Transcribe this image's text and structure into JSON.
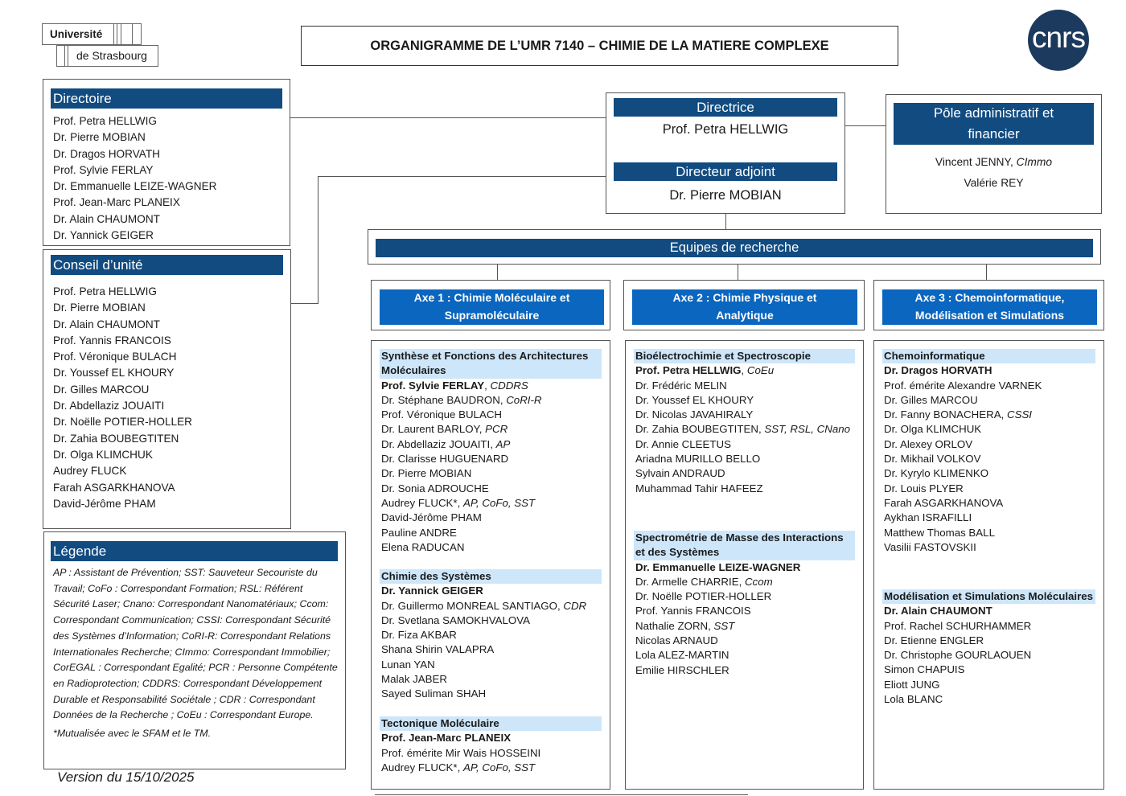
{
  "logo": {
    "line1": "Université",
    "line2": "de Strasbourg",
    "cnrs": "cnrs"
  },
  "title": "ORGANIGRAMME DE L’UMR 7140 – CHIMIE DE LA MATIERE COMPLEXE",
  "directoire": {
    "title": "Directoire",
    "members": [
      "Prof. Petra HELLWIG",
      "Dr. Pierre MOBIAN",
      "Dr. Dragos HORVATH",
      "Prof. Sylvie FERLAY",
      "Dr. Emmanuelle LEIZE-WAGNER",
      "Prof. Jean-Marc PLANEIX",
      "Dr. Alain CHAUMONT",
      "Dr. Yannick GEIGER"
    ]
  },
  "conseil": {
    "title": "Conseil d’unité",
    "members": [
      "Prof. Petra HELLWIG",
      "Dr. Pierre MOBIAN",
      "Dr. Alain CHAUMONT",
      "Prof. Yannis FRANCOIS",
      "Prof. Véronique BULACH",
      "Dr. Youssef EL KHOURY",
      "Dr. Gilles MARCOU",
      "Dr. Abdellaziz JOUAITI",
      "Dr. Noëlle POTIER-HOLLER",
      "Dr. Zahia BOUBEGTITEN",
      "Dr. Olga KLIMCHUK",
      "Audrey FLUCK",
      "Farah ASGARKHANOVA",
      "David-Jérôme PHAM"
    ]
  },
  "legende": {
    "title": "Légende",
    "text": "AP : Assistant de Prévention; SST: Sauveteur Secouriste du Travail; CoFo : Correspondant Formation; RSL: Référent Sécurité Laser; Cnano: Correspondant Nanomatériaux; Ccom: Correspondant Communication; CSSI: Correspondant Sécurité des Systèmes d’Information; CoRI-R: Correspondant Relations Internationales Recherche; CImmo: Correspondant Immobilier; CorEGAL : Correspondant Egalité; PCR : Personne Compétente en Radioprotection; CDDRS: Correspondant Développement Durable et Responsabilité Sociétale ; CDR : Correspondant Données de la Recherche ; CoEu : Correspondant Europe.",
    "note": "*Mutualisée avec le SFAM et le TM."
  },
  "version": "Version du 15/10/2025",
  "direction": {
    "directrice_title": "Directrice",
    "directrice": "Prof. Petra HELLWIG",
    "adjoint_title": "Directeur adjoint",
    "adjoint": "Dr. Pierre MOBIAN"
  },
  "pole": {
    "title": "Pôle administratif et financier",
    "members": [
      {
        "name": "Vincent JENNY, ",
        "role": "CImmo"
      },
      {
        "name": "Valérie REY",
        "role": ""
      }
    ]
  },
  "equipes_title": "Equipes de recherche",
  "axes": [
    {
      "title": "Axe 1 : Chimie Moléculaire et Supramoléculaire",
      "groups": [
        {
          "name": "Synthèse et Fonctions des Architectures Moléculaires",
          "members": [
            {
              "name": "Prof. Sylvie FERLAY",
              "role": "CDDRS",
              "bold": true
            },
            {
              "name": "Dr. Stéphane BAUDRON",
              "role": "CoRI-R"
            },
            {
              "name": "Prof. Véronique BULACH"
            },
            {
              "name": "Dr. Laurent BARLOY",
              "role": "PCR"
            },
            {
              "name": "Dr. Abdellaziz JOUAITI",
              "role": "AP"
            },
            {
              "name": "Dr. Clarisse HUGUENARD"
            },
            {
              "name": "Dr. Pierre MOBIAN"
            },
            {
              "name": "Dr. Sonia ADROUCHE"
            },
            {
              "name": "Audrey FLUCK*",
              "role": "AP, CoFo, SST"
            },
            {
              "name": "David-Jérôme PHAM"
            },
            {
              "name": "Pauline ANDRE"
            },
            {
              "name": "Elena RADUCAN"
            }
          ]
        },
        {
          "name": "Chimie des Systèmes",
          "members": [
            {
              "name": "Dr. Yannick GEIGER",
              "bold": true
            },
            {
              "name": "Dr. Guillermo MONREAL SANTIAGO",
              "role": "CDR"
            },
            {
              "name": "Dr. Svetlana SAMOKHVALOVA"
            },
            {
              "name": "Dr. Fiza AKBAR"
            },
            {
              "name": "Shana Shirin VALAPRA"
            },
            {
              "name": "Lunan YAN"
            },
            {
              "name": "Malak JABER"
            },
            {
              "name": "Sayed Suliman SHAH"
            }
          ]
        },
        {
          "name": "Tectonique Moléculaire",
          "members": [
            {
              "name": "Prof. Jean-Marc PLANEIX",
              "bold": true
            },
            {
              "name": "Prof. émérite Mir Wais HOSSEINI"
            },
            {
              "name": "Audrey FLUCK*",
              "role": "AP, CoFo, SST"
            }
          ]
        }
      ]
    },
    {
      "title": "Axe 2 : Chimie Physique et Analytique",
      "groups": [
        {
          "name": "Bioélectrochimie et Spectroscopie",
          "members": [
            {
              "name": "Prof. Petra HELLWIG",
              "role": "CoEu",
              "bold": true
            },
            {
              "name": "Dr. Frédéric MELIN"
            },
            {
              "name": "Dr. Youssef EL KHOURY"
            },
            {
              "name": "Dr. Nicolas JAVAHIRALY"
            },
            {
              "name": "Dr. Zahia BOUBEGTITEN",
              "role": "SST, RSL, CNano"
            },
            {
              "name": "Dr. Annie CLEETUS"
            },
            {
              "name": "Ariadna MURILLO BELLO"
            },
            {
              "name": "Sylvain ANDRAUD"
            },
            {
              "name": "Muhammad Tahir HAFEEZ"
            }
          ]
        },
        {
          "name": "Spectrométrie de Masse des Interactions et des Systèmes",
          "members": [
            {
              "name": "Dr. Emmanuelle LEIZE-WAGNER",
              "bold": true
            },
            {
              "name": "Dr. Armelle CHARRIE",
              "role": "Ccom"
            },
            {
              "name": "Dr. Noëlle POTIER-HOLLER"
            },
            {
              "name": "Prof. Yannis FRANCOIS"
            },
            {
              "name": "Nathalie ZORN",
              "role": "SST"
            },
            {
              "name": "Nicolas ARNAUD"
            },
            {
              "name": "Lola ALEZ-MARTIN"
            },
            {
              "name": "Emilie HIRSCHLER"
            }
          ]
        }
      ]
    },
    {
      "title": "Axe 3 : Chemoinformatique, Modélisation et Simulations",
      "groups": [
        {
          "name": "Chemoinformatique",
          "members": [
            {
              "name": "Dr. Dragos HORVATH",
              "bold": true
            },
            {
              "name": "Prof. émérite Alexandre VARNEK"
            },
            {
              "name": "Dr. Gilles MARCOU"
            },
            {
              "name": "Dr. Fanny BONACHERA",
              "role": "CSSI"
            },
            {
              "name": "Dr. Olga KLIMCHUK"
            },
            {
              "name": "Dr. Alexey ORLOV"
            },
            {
              "name": "Dr. Mikhail VOLKOV"
            },
            {
              "name": "Dr. Kyrylo KLIMENKO"
            },
            {
              "name": "Dr. Louis PLYER"
            },
            {
              "name": "Farah ASGARKHANOVA"
            },
            {
              "name": "Aykhan ISRAFILLI"
            },
            {
              "name": "Matthew Thomas BALL"
            },
            {
              "name": "Vasilii FASTOVSKII"
            }
          ]
        },
        {
          "name": "Modélisation et Simulations Moléculaires",
          "members": [
            {
              "name": "Dr. Alain CHAUMONT",
              "bold": true
            },
            {
              "name": "Prof. Rachel SCHURHAMMER"
            },
            {
              "name": "Dr. Etienne ENGLER"
            },
            {
              "name": "Dr. Christophe GOURLAOUEN"
            },
            {
              "name": "Simon CHAPUIS"
            },
            {
              "name": "Eliott JUNG"
            },
            {
              "name": "Lola BLANC"
            }
          ]
        }
      ]
    }
  ],
  "colors": {
    "dark_header": "#114b80",
    "axis_header": "#0a66bf",
    "group_header": "#cde6fa",
    "cnrs_logo": "#1b3a5e"
  }
}
